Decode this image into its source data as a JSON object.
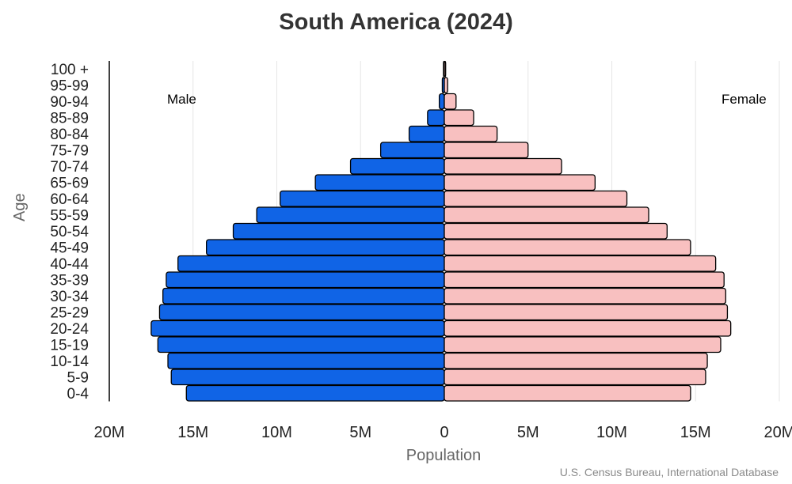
{
  "chart_data": {
    "type": "bar",
    "orientation": "horizontal",
    "layout": "population-pyramid",
    "title": "South America (2024)",
    "xlabel": "Population",
    "ylabel": "Age",
    "source": "U.S. Census Bureau, International Database",
    "side_labels": {
      "left": "Male",
      "right": "Female"
    },
    "categories": [
      "100 +",
      "95-99",
      "90-94",
      "85-89",
      "80-84",
      "75-79",
      "70-74",
      "65-69",
      "60-64",
      "55-59",
      "50-54",
      "45-49",
      "40-44",
      "35-39",
      "30-34",
      "25-29",
      "20-24",
      "15-19",
      "10-14",
      "5-9",
      "0-4"
    ],
    "series": [
      {
        "name": "Male",
        "side": "left",
        "color": "#1064e6",
        "values": [
          0.05,
          0.12,
          0.3,
          1.0,
          2.1,
          3.8,
          5.6,
          7.7,
          9.8,
          11.2,
          12.6,
          14.2,
          15.9,
          16.6,
          16.8,
          17.0,
          17.5,
          17.1,
          16.5,
          16.3,
          15.4
        ]
      },
      {
        "name": "Female",
        "side": "right",
        "color": "#f8c0c0",
        "values": [
          0.08,
          0.2,
          0.7,
          1.75,
          3.15,
          5.0,
          7.0,
          9.0,
          10.9,
          12.2,
          13.3,
          14.7,
          16.2,
          16.7,
          16.8,
          16.9,
          17.1,
          16.5,
          15.7,
          15.6,
          14.7
        ]
      }
    ],
    "units": "millions",
    "xlim": [
      -20,
      20
    ],
    "x_ticks": [
      {
        "value": -20,
        "label": "20M"
      },
      {
        "value": -15,
        "label": "15M"
      },
      {
        "value": -10,
        "label": "10M"
      },
      {
        "value": -5,
        "label": "5M"
      },
      {
        "value": 0,
        "label": "0"
      },
      {
        "value": 5,
        "label": "5M"
      },
      {
        "value": 10,
        "label": "10M"
      },
      {
        "value": 15,
        "label": "15M"
      },
      {
        "value": 20,
        "label": "20M"
      }
    ],
    "grid": true,
    "bar_outline_color": "#000000",
    "grid_color": "#e6e6e6"
  }
}
